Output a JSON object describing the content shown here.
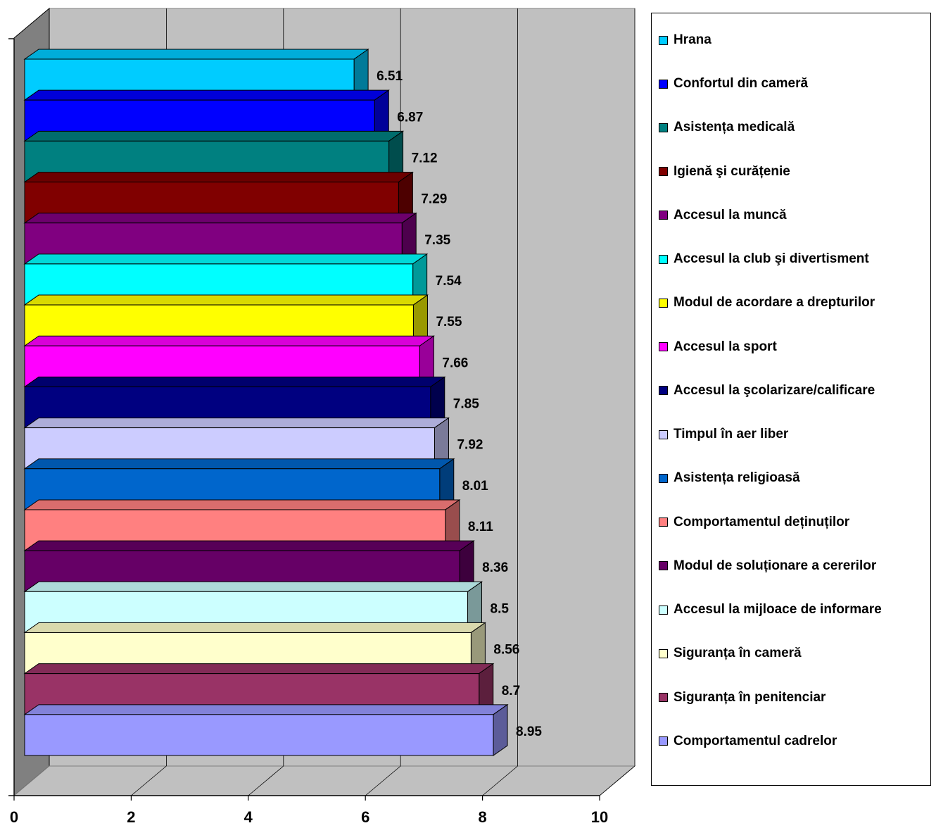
{
  "chart_data": {
    "type": "bar",
    "orientation": "horizontal",
    "three_d": true,
    "title": "",
    "xlabel": "",
    "ylabel": "",
    "xlim": [
      0,
      10
    ],
    "xticks": [
      "0",
      "2",
      "4",
      "6",
      "8",
      "10"
    ],
    "grid": true,
    "legend_position": "right",
    "categories": [
      "Hrana",
      "Confortul din cameră",
      "Asistența medicală",
      "Igienă şi curățenie",
      "Accesul la muncă",
      "Accesul la club şi divertisment",
      "Modul de acordare a drepturilor",
      "Accesul la sport",
      "Accesul la şcolarizare/calificare",
      "Timpul în aer liber",
      "Asistența religioasă",
      "Comportamentul deținuților",
      "Modul de soluționare a cererilor",
      "Accesul la mijloace de informare",
      "Siguranța în cameră",
      "Siguranța în penitenciar",
      "Comportamentul cadrelor"
    ],
    "values": [
      6.51,
      6.87,
      7.12,
      7.29,
      7.35,
      7.54,
      7.55,
      7.66,
      7.85,
      7.92,
      8.01,
      8.11,
      8.36,
      8.5,
      8.56,
      8.7,
      8.95
    ],
    "value_labels": [
      "6.51",
      "6.87",
      "7.12",
      "7.29",
      "7.35",
      "7.54",
      "7.55",
      "7.66",
      "7.85",
      "7.92",
      "8.01",
      "8.11",
      "8.36",
      "8.5",
      "8.56",
      "8.7",
      "8.95"
    ],
    "colors": [
      "#00CCFF",
      "#0000FF",
      "#008080",
      "#800000",
      "#800080",
      "#00FFFF",
      "#FFFF00",
      "#FF00FF",
      "#000080",
      "#CCCCFF",
      "#0066CC",
      "#FF8080",
      "#660066",
      "#CCFFFF",
      "#FFFFCC",
      "#993366",
      "#9999FF"
    ]
  }
}
